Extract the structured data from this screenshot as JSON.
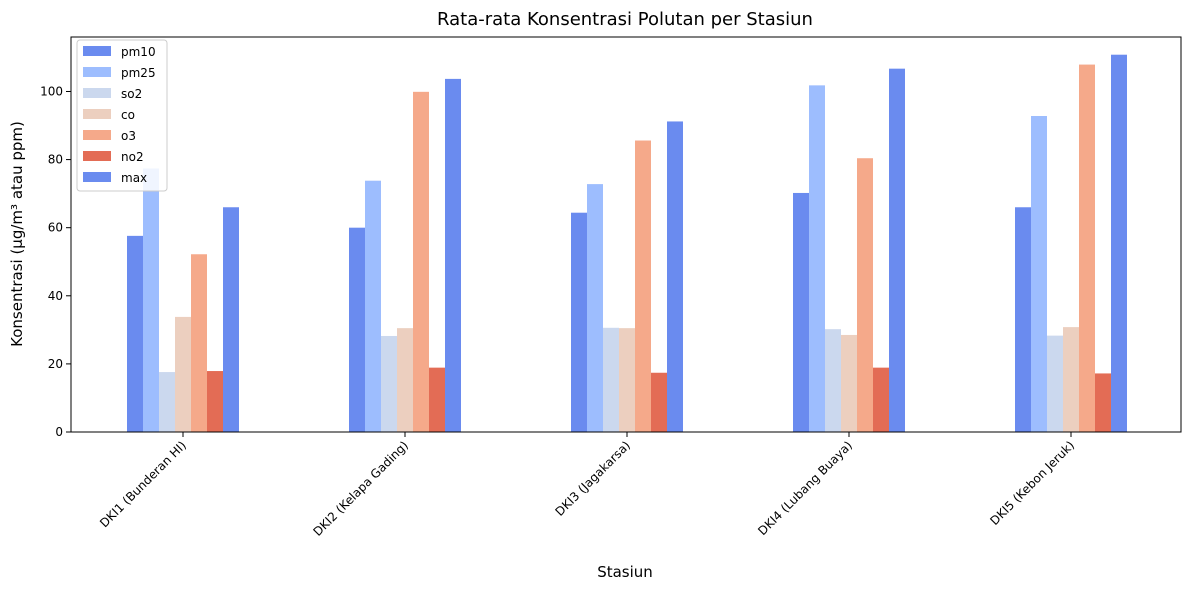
{
  "chart_data": {
    "type": "bar",
    "title": "Rata-rata Konsentrasi Polutan per Stasiun",
    "xlabel": "Stasiun",
    "ylabel": "Konsentrasi (µg/m³ atau ppm)",
    "ylim": [
      0,
      116
    ],
    "yticks": [
      0,
      20,
      40,
      60,
      80,
      100
    ],
    "grid": false,
    "legend_position": "top-left",
    "categories": [
      "DKI1 (Bunderan HI)",
      "DKI2 (Kelapa Gading)",
      "DKI3 (Jagakarsa)",
      "DKI4 (Lubang Buaya)",
      "DKI5 (Kebon Jeruk)"
    ],
    "series": [
      {
        "name": "pm10",
        "color": "#6a8bef",
        "values": [
          57.6,
          60.0,
          64.4,
          70.2,
          66.0
        ]
      },
      {
        "name": "pm25",
        "color": "#9dbdfe",
        "values": [
          77.4,
          73.8,
          72.8,
          101.8,
          92.8
        ]
      },
      {
        "name": "so2",
        "color": "#cbd8ee",
        "values": [
          17.6,
          28.2,
          30.6,
          30.2,
          28.3
        ]
      },
      {
        "name": "co",
        "color": "#eccfbf",
        "values": [
          33.8,
          30.5,
          30.5,
          28.5,
          30.8
        ]
      },
      {
        "name": "o3",
        "color": "#f5a98a",
        "values": [
          52.2,
          99.9,
          85.6,
          80.4,
          107.9
        ]
      },
      {
        "name": "no2",
        "color": "#e36c55",
        "values": [
          17.9,
          18.9,
          17.4,
          18.9,
          17.2
        ]
      },
      {
        "name": "max",
        "color": "#6a8bef",
        "values": [
          66.0,
          103.7,
          91.2,
          106.7,
          110.8
        ]
      }
    ]
  }
}
